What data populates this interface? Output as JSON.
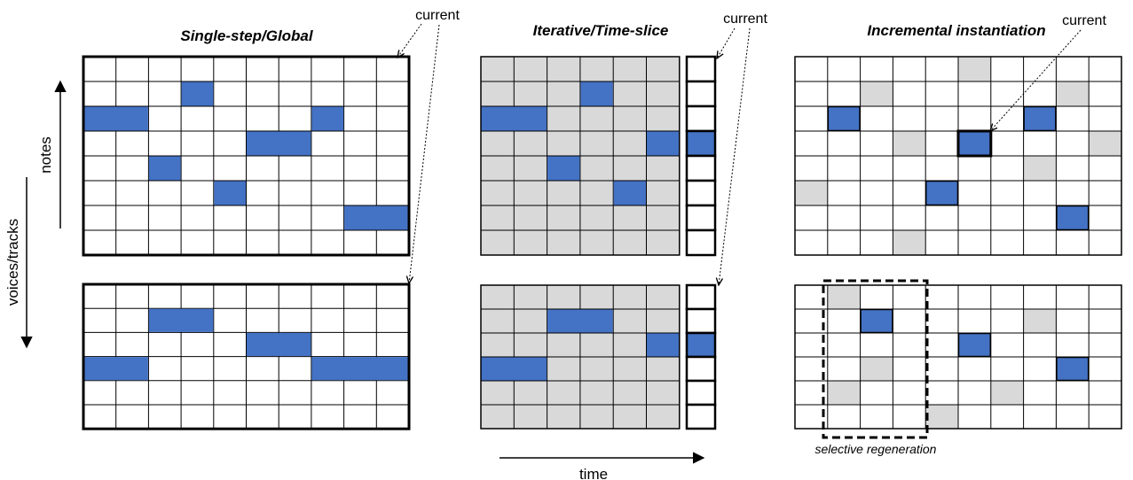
{
  "titles": {
    "global": "Single-step/Global",
    "iterative": "Iterative/Time-slice",
    "incremental": "Incremental instantiation"
  },
  "labels": {
    "current": "current",
    "time": "time",
    "notes": "notes",
    "voices_tracks": "voices/tracks",
    "selective_regeneration": "selective regeneration"
  },
  "colors": {
    "note": "#4472c4",
    "shade": "#d9d9d9",
    "grid": "#000000",
    "background": "#ffffff"
  },
  "grids": {
    "global_top": {
      "cols": 10,
      "rows": 8,
      "shaded": false,
      "notes": [
        [
          3,
          1,
          1
        ],
        [
          0,
          2,
          2
        ],
        [
          7,
          2,
          1
        ],
        [
          5,
          3,
          2
        ],
        [
          2,
          4,
          1
        ],
        [
          4,
          5,
          1
        ],
        [
          8,
          6,
          2
        ]
      ]
    },
    "global_bottom": {
      "cols": 10,
      "rows": 6,
      "shaded": false,
      "notes": [
        [
          2,
          1,
          2
        ],
        [
          5,
          2,
          2
        ],
        [
          0,
          3,
          2
        ],
        [
          7,
          3,
          3
        ]
      ]
    },
    "iter_top": {
      "cols": 6,
      "rows": 8,
      "shaded": true,
      "notes": [
        [
          3,
          1,
          1
        ],
        [
          0,
          2,
          2
        ],
        [
          5,
          3,
          1
        ],
        [
          2,
          4,
          1
        ],
        [
          4,
          5,
          1
        ]
      ]
    },
    "iter_top_slice": {
      "rows": 8,
      "note_rows": [
        3
      ]
    },
    "iter_bottom": {
      "cols": 6,
      "rows": 6,
      "shaded": true,
      "notes": [
        [
          2,
          1,
          2
        ],
        [
          5,
          2,
          1
        ],
        [
          0,
          3,
          2
        ]
      ]
    },
    "iter_bottom_slice": {
      "rows": 6,
      "note_rows": [
        2
      ]
    },
    "incr_top": {
      "cols": 10,
      "rows": 8,
      "notes": [
        [
          1,
          2
        ],
        [
          7,
          2
        ],
        [
          5,
          3
        ],
        [
          4,
          5
        ],
        [
          8,
          6
        ]
      ],
      "gray": [
        [
          5,
          0
        ],
        [
          2,
          1
        ],
        [
          8,
          1
        ],
        [
          3,
          3
        ],
        [
          9,
          3
        ],
        [
          7,
          4
        ],
        [
          0,
          5
        ],
        [
          3,
          7
        ]
      ],
      "current": [
        5,
        3
      ]
    },
    "incr_bottom": {
      "cols": 10,
      "rows": 6,
      "notes": [
        [
          2,
          1
        ],
        [
          5,
          2
        ],
        [
          8,
          3
        ]
      ],
      "gray": [
        [
          1,
          0
        ],
        [
          7,
          1
        ],
        [
          2,
          3
        ],
        [
          1,
          4
        ],
        [
          6,
          4
        ],
        [
          4,
          5
        ]
      ]
    }
  }
}
